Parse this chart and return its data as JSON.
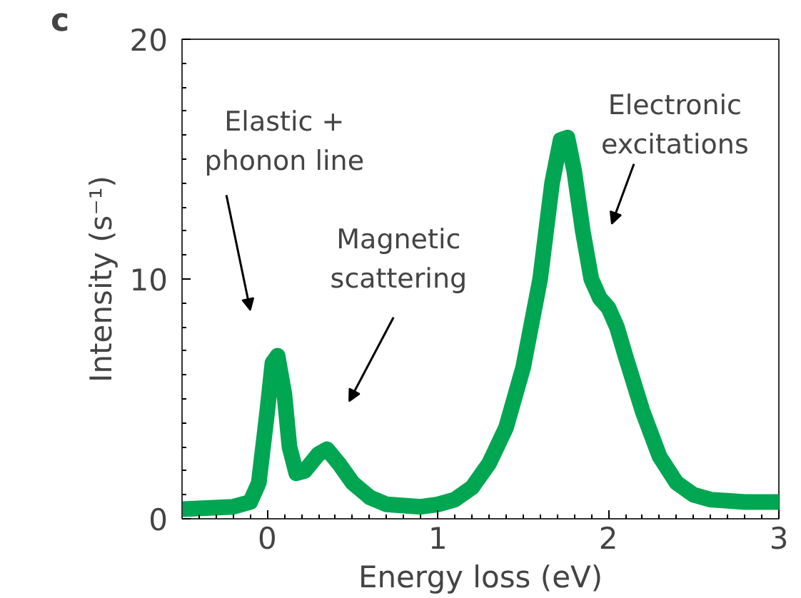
{
  "chart_data": {
    "type": "line",
    "xlabel": "Energy loss (eV)",
    "ylabel": "Intensity (s⁻¹)",
    "x": [
      -0.5,
      -0.2,
      -0.1,
      -0.05,
      0,
      0.03,
      0.06,
      0.1,
      0.13,
      0.17,
      0.22,
      0.3,
      0.35,
      0.42,
      0.5,
      0.6,
      0.7,
      0.9,
      1.0,
      1.1,
      1.2,
      1.3,
      1.4,
      1.5,
      1.6,
      1.67,
      1.72,
      1.76,
      1.8,
      1.85,
      1.9,
      1.95,
      2.0,
      2.05,
      2.1,
      2.2,
      2.3,
      2.4,
      2.5,
      2.6,
      2.8,
      3.0
    ],
    "series": [
      {
        "color": "#00a651",
        "values": [
          0.4,
          0.5,
          0.7,
          1.5,
          4.5,
          6.5,
          6.8,
          5.2,
          3.0,
          1.9,
          2.0,
          2.7,
          2.9,
          2.3,
          1.5,
          0.9,
          0.6,
          0.5,
          0.6,
          0.8,
          1.3,
          2.3,
          3.8,
          6.3,
          10,
          14,
          15.8,
          15.9,
          14.5,
          12,
          10,
          9.2,
          8.8,
          8.0,
          6.8,
          4.5,
          2.6,
          1.5,
          1.0,
          0.8,
          0.7,
          0.7
        ]
      }
    ],
    "xlim": [
      -0.5,
      3
    ],
    "ylim": [
      0,
      20
    ],
    "xticks": [
      0,
      1,
      2,
      3
    ],
    "yticks": [
      0,
      10,
      20
    ],
    "grid": false,
    "line_style": "solid",
    "annotations": [
      "c",
      "Elastic +\nphonon line",
      "Magnetic\nscattering",
      "Electronic\nexcitations"
    ]
  }
}
